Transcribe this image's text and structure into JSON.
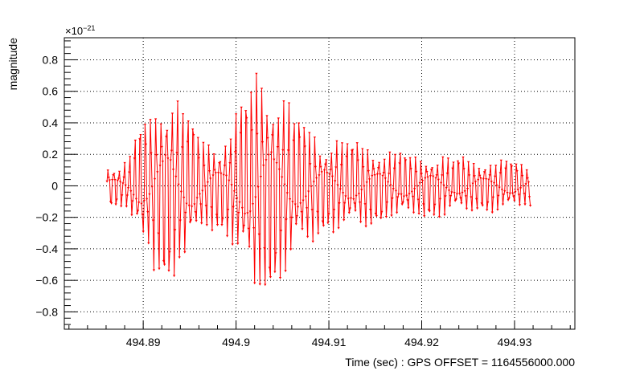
{
  "chart_data": {
    "type": "line",
    "xlabel": "Time (sec) : GPS OFFSET = 1164556000.000",
    "ylabel": "magnitude",
    "y_exponent": "×10",
    "y_exponent_power": "−21",
    "xlim": [
      494.8815,
      494.9365
    ],
    "ylim": [
      -0.91,
      0.94
    ],
    "x_ticks": [
      494.89,
      494.9,
      494.91,
      494.92,
      494.93
    ],
    "x_tick_labels": [
      "494.89",
      "494.9",
      "494.91",
      "494.92",
      "494.93"
    ],
    "y_ticks": [
      -0.8,
      -0.6,
      -0.4,
      -0.2,
      0,
      0.2,
      0.4,
      0.6,
      0.8
    ],
    "y_tick_labels": [
      "−0.8",
      "−0.6",
      "−0.4",
      "−0.2",
      "0",
      "0.2",
      "0.4",
      "0.6",
      "0.8"
    ],
    "grid": true,
    "line_color": "#ff0000",
    "marker": "small-triangle",
    "series": [
      {
        "x_start": 494.8861,
        "x_end": 494.9317,
        "points_per_cycle": 6,
        "n_points": 480,
        "envelope": [
          [
            494.8861,
            0.14
          ],
          [
            494.8875,
            0.13
          ],
          [
            494.8885,
            0.18
          ],
          [
            494.8895,
            0.38
          ],
          [
            494.8905,
            0.49
          ],
          [
            494.8915,
            0.58
          ],
          [
            494.8925,
            0.64
          ],
          [
            494.8935,
            0.61
          ],
          [
            494.8945,
            0.52
          ],
          [
            494.8955,
            0.4
          ],
          [
            494.8965,
            0.3
          ],
          [
            494.898,
            0.28
          ],
          [
            494.8995,
            0.38
          ],
          [
            494.9005,
            0.52
          ],
          [
            494.9015,
            0.66
          ],
          [
            494.9025,
            0.76
          ],
          [
            494.9035,
            0.74
          ],
          [
            494.9045,
            0.64
          ],
          [
            494.906,
            0.52
          ],
          [
            494.9075,
            0.4
          ],
          [
            494.909,
            0.32
          ],
          [
            494.911,
            0.3
          ],
          [
            494.914,
            0.27
          ],
          [
            494.918,
            0.22
          ],
          [
            494.923,
            0.19
          ],
          [
            494.927,
            0.17
          ],
          [
            494.93,
            0.16
          ],
          [
            494.9317,
            0.13
          ]
        ]
      }
    ]
  }
}
